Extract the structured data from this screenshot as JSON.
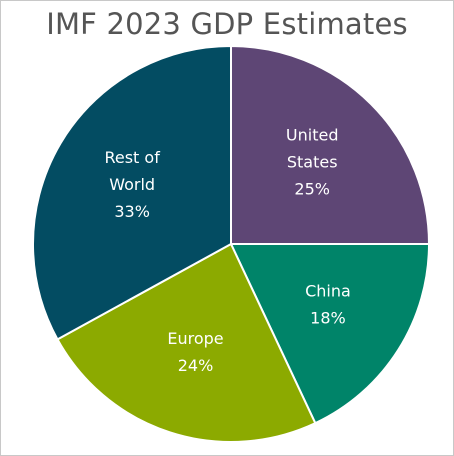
{
  "chart_data": {
    "type": "pie",
    "title": "IMF 2023 GDP Estimates",
    "slices": [
      {
        "name_lines": [
          "United",
          "States"
        ],
        "value": 25,
        "value_label": "25%",
        "color": "#5e4675"
      },
      {
        "name_lines": [
          "China"
        ],
        "value": 18,
        "value_label": "18%",
        "color": "#008469"
      },
      {
        "name_lines": [
          "Europe"
        ],
        "value": 24,
        "value_label": "24%",
        "color": "#8caa00"
      },
      {
        "name_lines": [
          "Rest of",
          "World"
        ],
        "value": 33,
        "value_label": "33%",
        "color": "#034c62"
      }
    ],
    "start_angle_deg": 0,
    "direction": "clockwise",
    "slice_border_color": "#ffffff",
    "legend": "none"
  }
}
